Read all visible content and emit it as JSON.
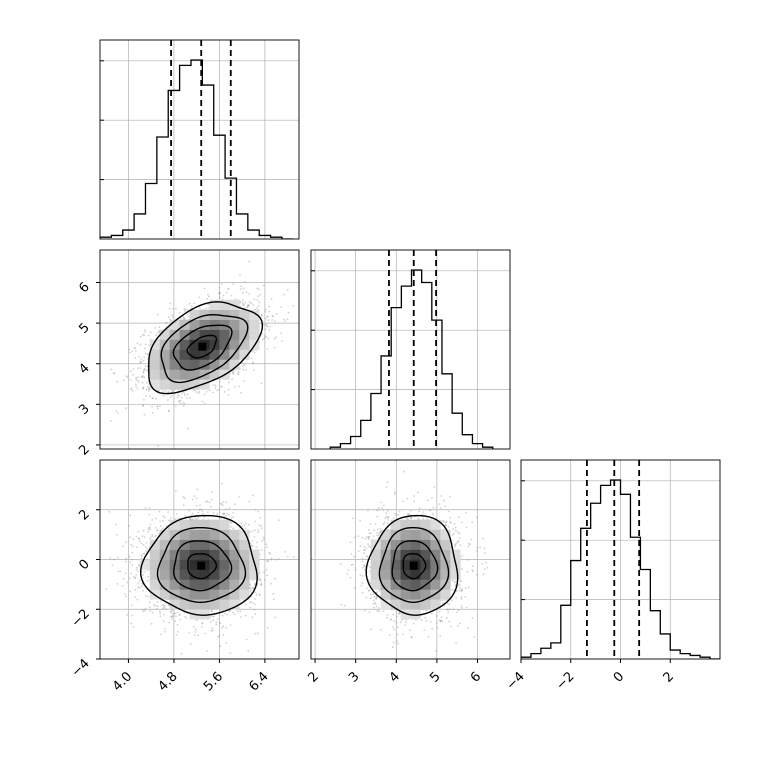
{
  "chart_data": {
    "type": "corner",
    "grid": true,
    "axis_label_rotation_deg": 45,
    "colors": {
      "line": "#000000",
      "grid": "#b0b0b0",
      "points": "#9a9a9a"
    },
    "panels": [
      {
        "id": "hist-p1",
        "type": "histogram",
        "bin_width": 0.2,
        "xlim": [
          3.5,
          7.0
        ],
        "bins_x": [
          3.6,
          3.8,
          4.0,
          4.2,
          4.4,
          4.6,
          4.8,
          5.0,
          5.2,
          5.4,
          5.6,
          5.8,
          6.0,
          6.2,
          6.4,
          6.6,
          6.8
        ],
        "counts": [
          0.01,
          0.02,
          0.05,
          0.14,
          0.31,
          0.57,
          0.83,
          0.97,
          1.0,
          0.86,
          0.58,
          0.34,
          0.14,
          0.05,
          0.02,
          0.01,
          0.0
        ],
        "quantile_lines": [
          4.75,
          5.28,
          5.8
        ],
        "ytick_count": 3
      },
      {
        "id": "hist-p2",
        "type": "histogram",
        "bin_width": 0.25,
        "xlim": [
          1.9,
          6.8
        ],
        "bins_x": [
          2.5,
          2.75,
          3.0,
          3.25,
          3.5,
          3.75,
          4.0,
          4.25,
          4.5,
          4.75,
          5.0,
          5.25,
          5.5,
          5.75,
          6.0,
          6.25
        ],
        "counts": [
          0.01,
          0.03,
          0.07,
          0.16,
          0.31,
          0.52,
          0.79,
          0.91,
          1.0,
          0.93,
          0.72,
          0.42,
          0.2,
          0.08,
          0.03,
          0.01
        ],
        "quantile_lines": [
          3.82,
          4.43,
          4.98
        ],
        "ytick_count": 3
      },
      {
        "id": "hist-p3",
        "type": "histogram",
        "bin_width": 0.4,
        "xlim": [
          -4.0,
          4.0
        ],
        "bins_x": [
          -3.8,
          -3.4,
          -3.0,
          -2.6,
          -2.2,
          -1.8,
          -1.4,
          -1.0,
          -0.6,
          -0.2,
          0.2,
          0.6,
          1.0,
          1.4,
          1.8,
          2.2,
          2.6,
          3.0,
          3.4,
          3.8
        ],
        "counts": [
          0.01,
          0.03,
          0.06,
          0.09,
          0.3,
          0.55,
          0.73,
          0.87,
          0.97,
          1.0,
          0.92,
          0.68,
          0.5,
          0.27,
          0.14,
          0.05,
          0.03,
          0.02,
          0.01,
          0.0
        ],
        "quantile_lines": [
          -1.35,
          -0.25,
          0.75
        ],
        "ytick_count": 3
      },
      {
        "id": "scatter-p1-p2",
        "type": "2d-density",
        "xlim": [
          3.5,
          7.0
        ],
        "ylim": [
          1.9,
          6.8
        ],
        "center": [
          5.3,
          4.42
        ],
        "spread": [
          0.5,
          0.55
        ],
        "correlation": 0.45,
        "contour_levels_sigma": [
          0.5,
          1.0,
          1.5,
          2.0
        ]
      },
      {
        "id": "scatter-p1-p3",
        "type": "2d-density",
        "xlim": [
          3.5,
          7.0
        ],
        "ylim": [
          -4.0,
          4.0
        ],
        "center": [
          5.28,
          -0.25
        ],
        "spread": [
          0.5,
          1.0
        ],
        "correlation": 0.0,
        "contour_levels_sigma": [
          0.5,
          1.0,
          1.5,
          2.0
        ]
      },
      {
        "id": "scatter-p2-p3",
        "type": "2d-density",
        "xlim": [
          1.9,
          6.8
        ],
        "ylim": [
          -4.0,
          4.0
        ],
        "center": [
          4.43,
          -0.25
        ],
        "spread": [
          0.55,
          1.0
        ],
        "correlation": 0.0,
        "contour_levels_sigma": [
          0.5,
          1.0,
          1.5,
          2.0
        ]
      }
    ],
    "x_ticks": {
      "p1": [
        {
          "v": 4.0,
          "label": "4.0"
        },
        {
          "v": 4.8,
          "label": "4.8"
        },
        {
          "v": 5.6,
          "label": "5.6"
        },
        {
          "v": 6.4,
          "label": "6.4"
        }
      ],
      "p2": [
        {
          "v": 2,
          "label": "2"
        },
        {
          "v": 3,
          "label": "3"
        },
        {
          "v": 4,
          "label": "4"
        },
        {
          "v": 5,
          "label": "5"
        },
        {
          "v": 6,
          "label": "6"
        }
      ],
      "p3": [
        {
          "v": -4,
          "label": "−4"
        },
        {
          "v": -2,
          "label": "−2"
        },
        {
          "v": 0,
          "label": "0"
        },
        {
          "v": 2,
          "label": "2"
        }
      ]
    },
    "y_ticks": {
      "p2": [
        {
          "v": 2,
          "label": "2"
        },
        {
          "v": 3,
          "label": "3"
        },
        {
          "v": 4,
          "label": "4"
        },
        {
          "v": 5,
          "label": "5"
        },
        {
          "v": 6,
          "label": "6"
        }
      ],
      "p3": [
        {
          "v": -4,
          "label": "−4"
        },
        {
          "v": -2,
          "label": "−2"
        },
        {
          "v": 0,
          "label": "0"
        },
        {
          "v": 2,
          "label": "2"
        }
      ]
    }
  }
}
